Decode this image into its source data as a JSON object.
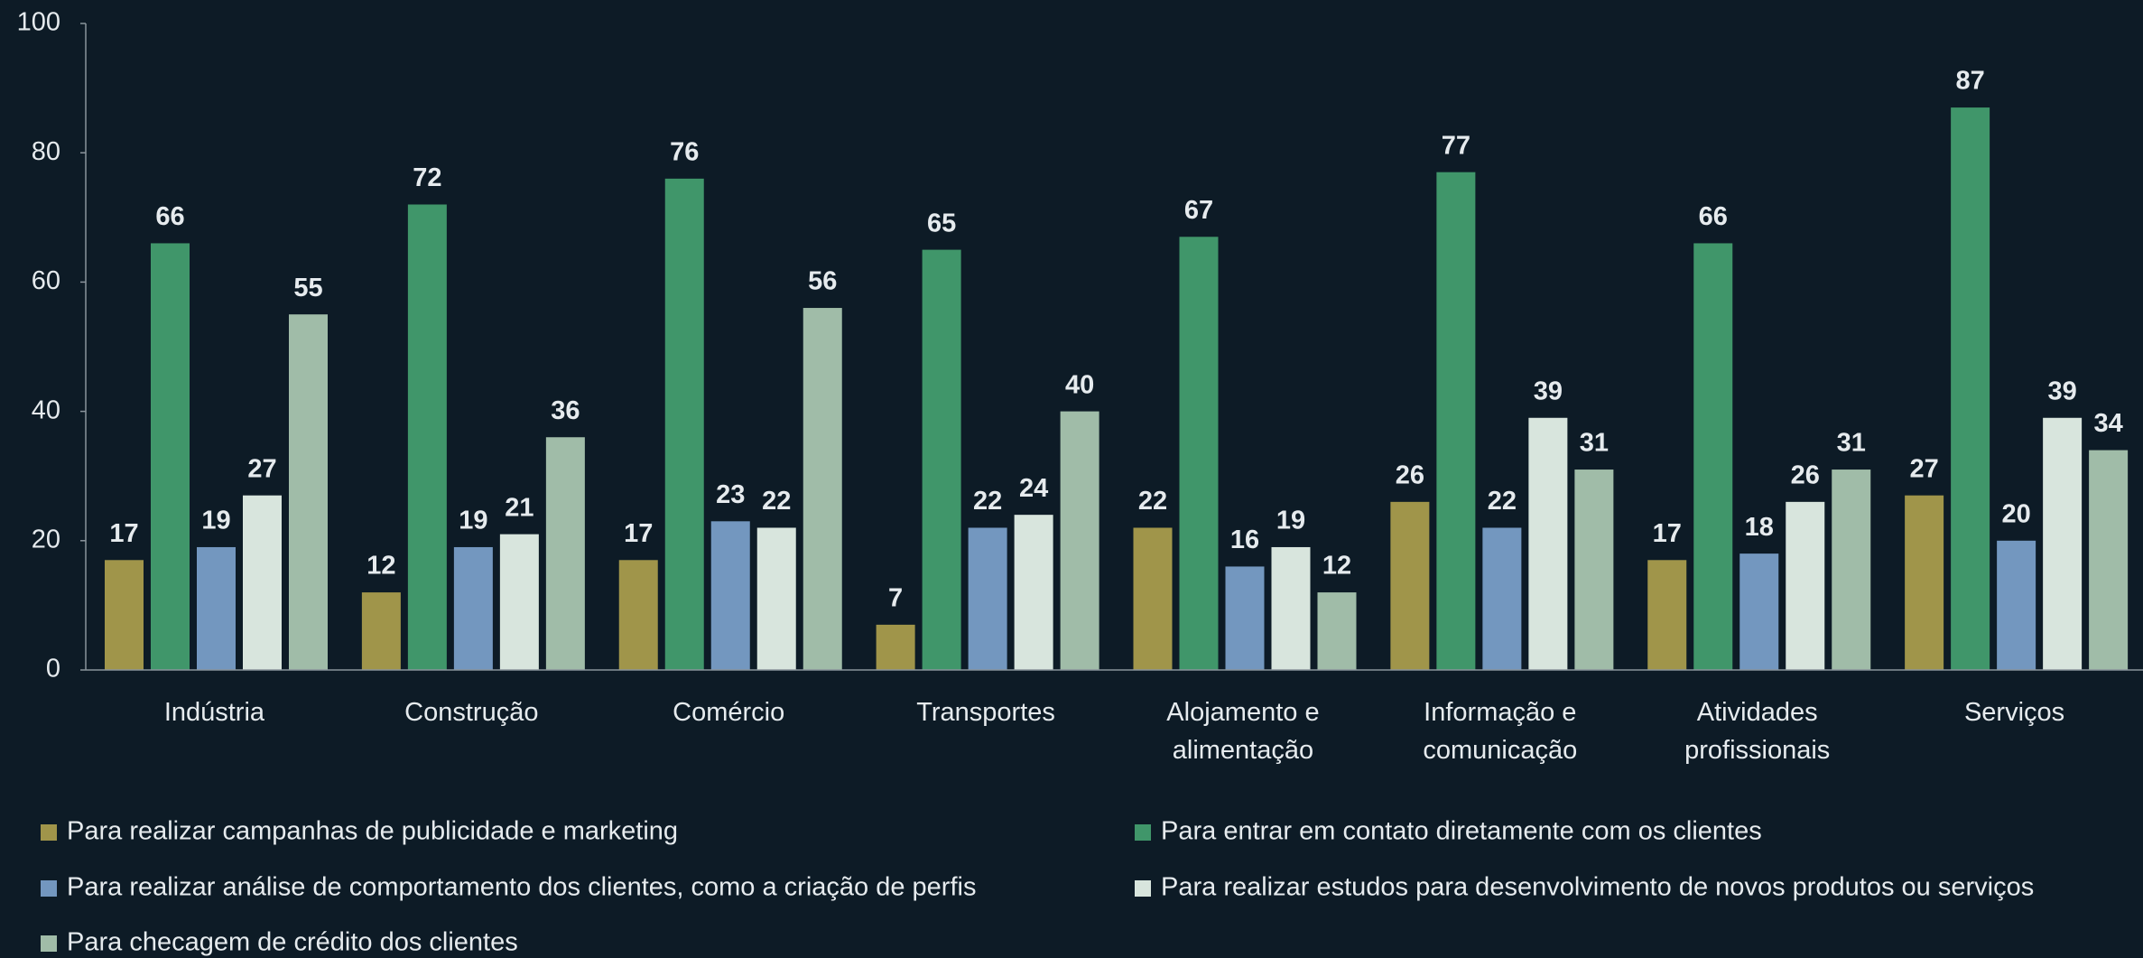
{
  "chart_data": {
    "type": "bar",
    "categories": [
      "Indústria",
      "Construção",
      "Comércio",
      "Transportes",
      "Alojamento e alimentação",
      "Informação e comunicação",
      "Atividades profissionais",
      "Serviços"
    ],
    "series": [
      {
        "name": "Para realizar campanhas de publicidade e marketing",
        "color": "#a0954a",
        "values": [
          17,
          12,
          17,
          7,
          22,
          26,
          17,
          27
        ]
      },
      {
        "name": "Para entrar em contato diretamente com os clientes",
        "color": "#40966a",
        "values": [
          66,
          72,
          76,
          65,
          67,
          77,
          66,
          87
        ]
      },
      {
        "name": "Para realizar análise de comportamento dos clientes, como a criação de perfis",
        "color": "#7397bf",
        "values": [
          19,
          19,
          23,
          22,
          16,
          22,
          18,
          20
        ]
      },
      {
        "name": "Para realizar estudos para desenvolvimento de novos produtos ou serviços",
        "color": "#d8e5dd",
        "values": [
          27,
          21,
          22,
          24,
          19,
          39,
          26,
          39
        ]
      },
      {
        "name": "Para checagem de crédito dos clientes",
        "color": "#a0bca8",
        "values": [
          55,
          36,
          56,
          40,
          12,
          31,
          31,
          34
        ]
      }
    ],
    "ylim": [
      0,
      100
    ],
    "yticks": [
      0,
      20,
      40,
      60,
      80,
      100
    ],
    "grid": false
  }
}
